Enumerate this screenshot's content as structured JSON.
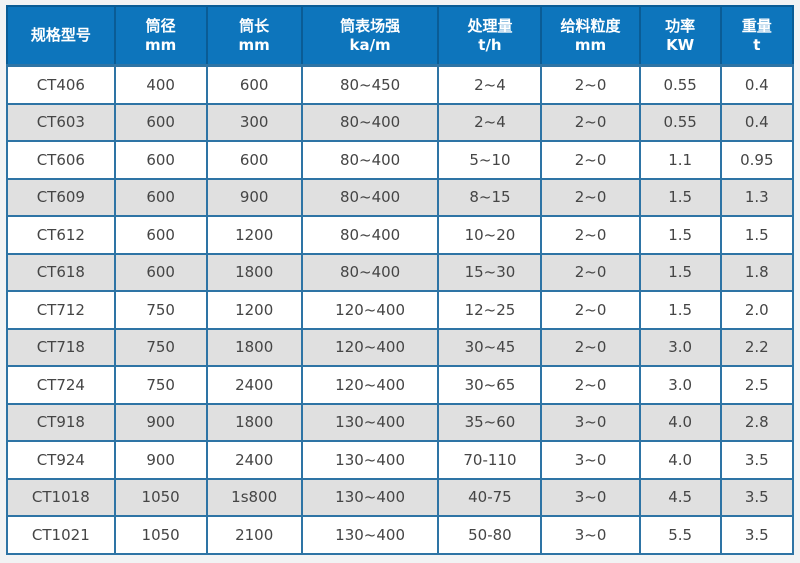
{
  "table": {
    "columns": [
      {
        "label": "规格型号",
        "unit": ""
      },
      {
        "label": "筒径",
        "unit": "mm"
      },
      {
        "label": "筒长",
        "unit": "mm"
      },
      {
        "label": "筒表场强",
        "unit": "ka/m"
      },
      {
        "label": "处理量",
        "unit": "t/h"
      },
      {
        "label": "给料粒度",
        "unit": "mm"
      },
      {
        "label": "功率",
        "unit": "KW"
      },
      {
        "label": "重量",
        "unit": "t"
      }
    ],
    "rows": [
      [
        "CT406",
        "400",
        "600",
        "80~450",
        "2~4",
        "2~0",
        "0.55",
        "0.4"
      ],
      [
        "CT603",
        "600",
        "300",
        "80~400",
        "2~4",
        "2~0",
        "0.55",
        "0.4"
      ],
      [
        "CT606",
        "600",
        "600",
        "80~400",
        "5~10",
        "2~0",
        "1.1",
        "0.95"
      ],
      [
        "CT609",
        "600",
        "900",
        "80~400",
        "8~15",
        "2~0",
        "1.5",
        "1.3"
      ],
      [
        "CT612",
        "600",
        "1200",
        "80~400",
        "10~20",
        "2~0",
        "1.5",
        "1.5"
      ],
      [
        "CT618",
        "600",
        "1800",
        "80~400",
        "15~30",
        "2~0",
        "1.5",
        "1.8"
      ],
      [
        "CT712",
        "750",
        "1200",
        "120~400",
        "12~25",
        "2~0",
        "1.5",
        "2.0"
      ],
      [
        "CT718",
        "750",
        "1800",
        "120~400",
        "30~45",
        "2~0",
        "3.0",
        "2.2"
      ],
      [
        "CT724",
        "750",
        "2400",
        "120~400",
        "30~65",
        "2~0",
        "3.0",
        "2.5"
      ],
      [
        "CT918",
        "900",
        "1800",
        "130~400",
        "35~60",
        "3~0",
        "4.0",
        "2.8"
      ],
      [
        "CT924",
        "900",
        "2400",
        "130~400",
        "70-110",
        "3~0",
        "4.0",
        "3.5"
      ],
      [
        "CT1018",
        "1050",
        "1s800",
        "130~400",
        "40-75",
        "3~0",
        "4.5",
        "3.5"
      ],
      [
        "CT1021",
        "1050",
        "2100",
        "130~400",
        "50-80",
        "3~0",
        "5.5",
        "3.5"
      ]
    ],
    "colors": {
      "header_bg": "#0d75bc",
      "header_border": "#0a5c95",
      "grid_border": "#2e74a5",
      "alt_row_bg": "#e0e0e0",
      "row_bg": "#ffffff",
      "header_text": "#ffffff",
      "cell_text": "#454545",
      "page_bg": "#f2f3f4"
    }
  }
}
